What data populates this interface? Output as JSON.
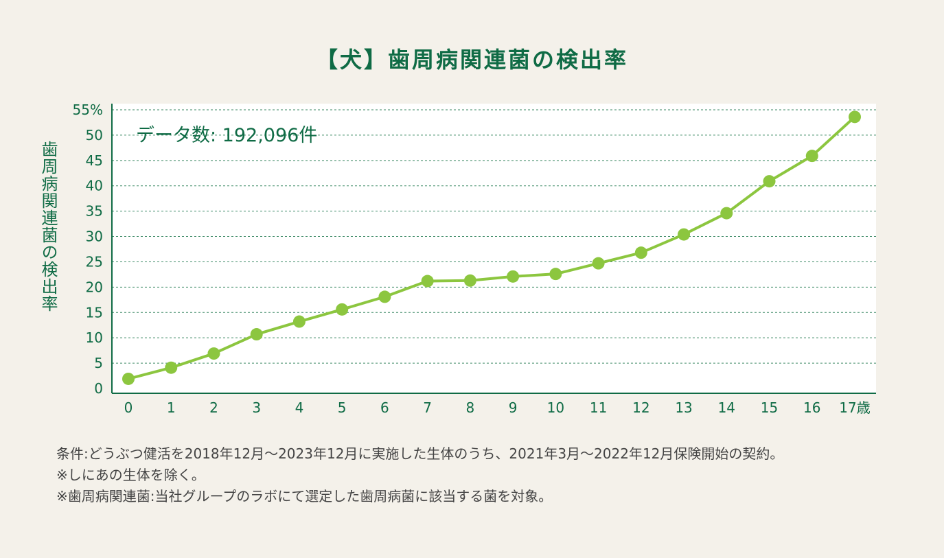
{
  "chart_data": {
    "type": "line",
    "title": "【犬】歯周病関連菌の検出率",
    "ylabel": "歯周病関連菌の検出率",
    "xlabel": "",
    "annotation": "データ数: 192,096件",
    "x": [
      0,
      1,
      2,
      3,
      4,
      5,
      6,
      7,
      8,
      9,
      10,
      11,
      12,
      13,
      14,
      15,
      16,
      17
    ],
    "x_tick_labels": [
      "0",
      "1",
      "2",
      "3",
      "4",
      "5",
      "6",
      "7",
      "8",
      "9",
      "10",
      "11",
      "12",
      "13",
      "14",
      "15",
      "16",
      "17歳"
    ],
    "series": [
      {
        "values": [
          1.9,
          4.1,
          6.9,
          10.7,
          13.2,
          15.6,
          18.1,
          21.2,
          21.3,
          22.1,
          22.6,
          24.7,
          26.8,
          30.4,
          34.6,
          40.9,
          45.9,
          53.6
        ]
      }
    ],
    "ylim": [
      0,
      55
    ],
    "y_ticks": [
      0,
      5,
      10,
      15,
      20,
      25,
      30,
      35,
      40,
      45,
      50,
      55
    ],
    "y_tick_labels": [
      "0",
      "5",
      "10",
      "15",
      "20",
      "25",
      "30",
      "35",
      "40",
      "45",
      "50",
      "55%"
    ],
    "grid": "horizontal-dashed",
    "line_color": "#8cc63f",
    "axis_color": "#0f6b45",
    "grid_color": "#3d8a66"
  },
  "notes": [
    "条件:どうぶつ健活を2018年12月〜2023年12月に実施した生体のうち、2021年3月〜2022年12月保険開始の契約。",
    "※しにあの生体を除く。",
    "※歯周病関連菌:当社グループのラボにて選定した歯周病菌に該当する菌を対象。"
  ]
}
